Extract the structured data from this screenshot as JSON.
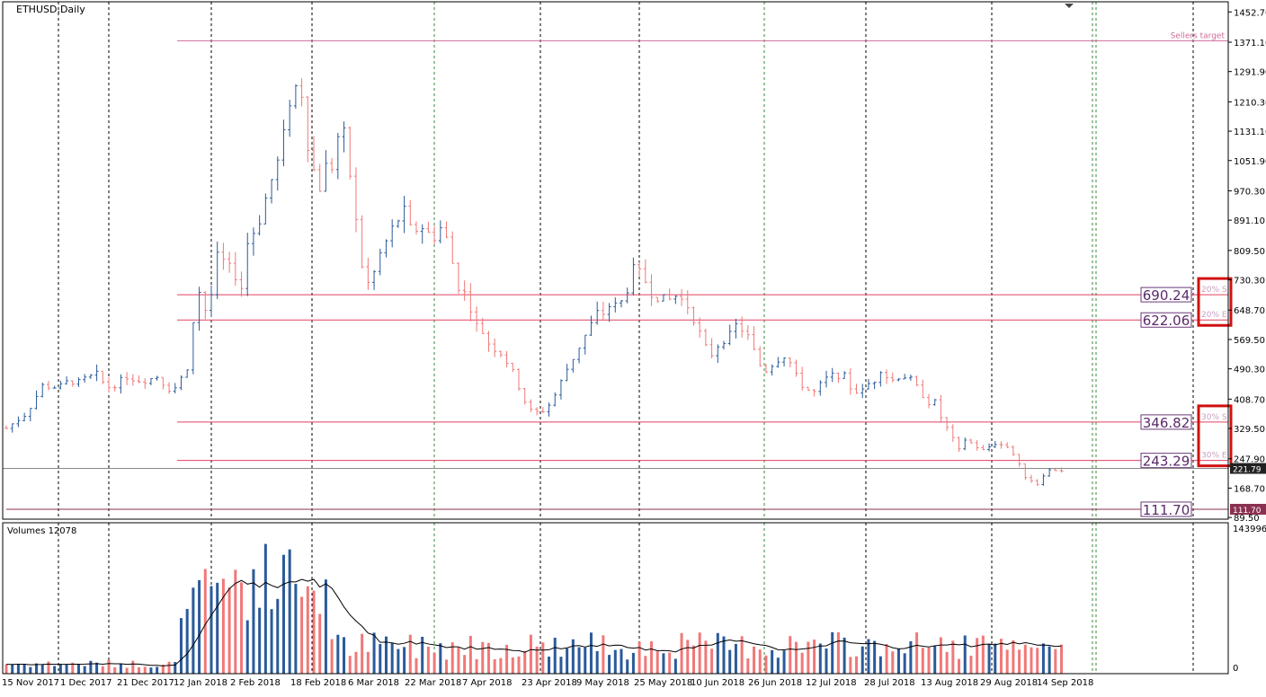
{
  "chart_data": {
    "type": "candlestick",
    "title": "ETHUSD,Daily",
    "volume_title": "Volumes 12078",
    "volume_axis_max": "143996",
    "volume_axis_min": "0",
    "price_axis_ticks": [
      1452.7,
      1371.1,
      1291.9,
      1210.3,
      1131.1,
      1051.9,
      970.3,
      891.1,
      809.5,
      730.3,
      648.7,
      569.5,
      490.3,
      408.7,
      329.5,
      247.9,
      168.7,
      89.5
    ],
    "price_axis_labels": [
      "1452.70",
      "1371.10",
      "1291.90",
      "1210.30",
      "1131.10",
      "1051.90",
      "970.30",
      "891.10",
      "809.50",
      "730.30",
      "648.70",
      "569.50",
      "490.30",
      "408.70",
      "329.50",
      "247.90",
      "168.70",
      "89.50"
    ],
    "ylim": [
      85,
      1480
    ],
    "date_labels": [
      "15 Nov 2017",
      "1 Dec 2017",
      "21 Dec 2017",
      "12 Jan 2018",
      "2 Feb 2018",
      "18 Feb 2018",
      "6 Mar 2018",
      "22 Mar 2018",
      "7 Apr 2018",
      "23 Apr 2018",
      "9 May 2018",
      "25 May 2018",
      "10 Jun 2018",
      "26 Jun 2018",
      "12 Jul 2018",
      "28 Jul 2018",
      "13 Aug 2018",
      "29 Aug 2018",
      "14 Sep 2018"
    ],
    "current_price": "221.79",
    "close_anchors": [
      [
        0,
        330
      ],
      [
        10,
        370
      ],
      [
        18,
        445
      ],
      [
        26,
        440
      ],
      [
        32,
        460
      ],
      [
        35,
        450
      ],
      [
        40,
        465
      ],
      [
        45,
        475
      ],
      [
        50,
        440
      ],
      [
        55,
        450
      ],
      [
        60,
        470
      ],
      [
        65,
        460
      ],
      [
        70,
        460
      ],
      [
        75,
        470
      ],
      [
        80,
        440
      ],
      [
        83,
        430
      ],
      [
        86,
        460
      ],
      [
        90,
        480
      ],
      [
        93,
        620
      ],
      [
        96,
        700
      ],
      [
        99,
        650
      ],
      [
        102,
        690
      ],
      [
        105,
        790
      ],
      [
        108,
        780
      ],
      [
        111,
        760
      ],
      [
        113,
        750
      ],
      [
        116,
        730
      ],
      [
        118,
        690
      ],
      [
        120,
        830
      ],
      [
        125,
        880
      ],
      [
        128,
        920
      ],
      [
        130,
        980
      ],
      [
        134,
        1020
      ],
      [
        137,
        1100
      ],
      [
        140,
        1150
      ],
      [
        142,
        1280
      ],
      [
        144,
        1250
      ],
      [
        146,
        1300
      ],
      [
        148,
        1170
      ],
      [
        150,
        1100
      ],
      [
        152,
        1040
      ],
      [
        156,
        980
      ],
      [
        158,
        1060
      ],
      [
        160,
        1010
      ],
      [
        163,
        1050
      ],
      [
        166,
        1150
      ],
      [
        168,
        1120
      ],
      [
        170,
        1050
      ],
      [
        173,
        940
      ],
      [
        175,
        830
      ],
      [
        177,
        770
      ],
      [
        180,
        720
      ],
      [
        184,
        760
      ],
      [
        187,
        820
      ],
      [
        190,
        840
      ],
      [
        193,
        880
      ],
      [
        196,
        900
      ],
      [
        199,
        920
      ],
      [
        202,
        840
      ],
      [
        205,
        880
      ],
      [
        208,
        870
      ],
      [
        212,
        840
      ],
      [
        216,
        870
      ],
      [
        220,
        830
      ],
      [
        224,
        720
      ],
      [
        227,
        700
      ],
      [
        230,
        680
      ],
      [
        233,
        610
      ],
      [
        236,
        600
      ],
      [
        240,
        560
      ],
      [
        244,
        540
      ],
      [
        247,
        530
      ],
      [
        250,
        500
      ],
      [
        253,
        470
      ],
      [
        256,
        430
      ],
      [
        259,
        390
      ],
      [
        262,
        370
      ],
      [
        265,
        375
      ],
      [
        268,
        380
      ],
      [
        271,
        400
      ],
      [
        274,
        430
      ],
      [
        278,
        480
      ],
      [
        282,
        520
      ],
      [
        286,
        560
      ],
      [
        290,
        600
      ],
      [
        294,
        640
      ],
      [
        297,
        640
      ],
      [
        300,
        660
      ],
      [
        304,
        660
      ],
      [
        308,
        680
      ],
      [
        311,
        760
      ],
      [
        314,
        750
      ],
      [
        317,
        740
      ],
      [
        320,
        700
      ],
      [
        323,
        690
      ],
      [
        326,
        680
      ],
      [
        329,
        670
      ],
      [
        332,
        690
      ],
      [
        335,
        680
      ],
      [
        338,
        670
      ],
      [
        341,
        640
      ],
      [
        344,
        600
      ],
      [
        347,
        560
      ],
      [
        350,
        520
      ],
      [
        353,
        550
      ],
      [
        357,
        570
      ],
      [
        360,
        580
      ],
      [
        362,
        610
      ],
      [
        365,
        600
      ],
      [
        368,
        590
      ],
      [
        371,
        550
      ],
      [
        374,
        510
      ],
      [
        377,
        480
      ],
      [
        380,
        500
      ],
      [
        383,
        510
      ],
      [
        386,
        530
      ],
      [
        389,
        520
      ],
      [
        392,
        480
      ],
      [
        395,
        450
      ],
      [
        398,
        440
      ],
      [
        401,
        420
      ],
      [
        404,
        440
      ],
      [
        407,
        460
      ],
      [
        410,
        470
      ],
      [
        413,
        475
      ],
      [
        417,
        470
      ],
      [
        420,
        440
      ],
      [
        423,
        430
      ],
      [
        426,
        430
      ],
      [
        429,
        450
      ],
      [
        432,
        460
      ],
      [
        435,
        490
      ],
      [
        438,
        470
      ],
      [
        441,
        460
      ],
      [
        444,
        470
      ],
      [
        447,
        470
      ],
      [
        450,
        460
      ],
      [
        453,
        440
      ],
      [
        456,
        420
      ],
      [
        459,
        400
      ],
      [
        462,
        400
      ],
      [
        465,
        360
      ],
      [
        468,
        330
      ],
      [
        471,
        300
      ],
      [
        474,
        270
      ],
      [
        477,
        300
      ],
      [
        480,
        290
      ],
      [
        483,
        280
      ],
      [
        486,
        270
      ],
      [
        489,
        280
      ],
      [
        492,
        290
      ],
      [
        495,
        290
      ],
      [
        498,
        280
      ],
      [
        501,
        260
      ],
      [
        504,
        230
      ],
      [
        507,
        200
      ],
      [
        510,
        190
      ],
      [
        513,
        180
      ],
      [
        515,
        200
      ],
      [
        518,
        215
      ],
      [
        521,
        220
      ],
      [
        524,
        215
      ],
      [
        527,
        220
      ]
    ],
    "x_index_max": 527,
    "reference_lines": [
      {
        "label": "Sellers target",
        "value": 1375,
        "color": "#d06a9a",
        "from_index": 85
      },
      {
        "label": "690.24",
        "value": 690.24,
        "color": "#e04060",
        "tag": "20% S",
        "from_index": 85
      },
      {
        "label": "622.06",
        "value": 622.06,
        "color": "#e04060",
        "tag": "20% E",
        "from_index": 85
      },
      {
        "label": "346.82",
        "value": 346.82,
        "color": "#e04060",
        "tag": "30% S",
        "from_index": 85
      },
      {
        "label": "243.29",
        "value": 243.29,
        "color": "#e04060",
        "tag": "30% E",
        "from_index": 85
      },
      {
        "label": "111.70",
        "value": 111.7,
        "color": "#8a3050",
        "from_index": 0
      }
    ],
    "colors": {
      "bull": "#2a5a9a",
      "bear": "#f07878",
      "current": "#222222",
      "level_tag": "#c8a0c0",
      "box": "#d01010",
      "grid": "#000000",
      "grid_green": "#3a8a3a"
    }
  }
}
